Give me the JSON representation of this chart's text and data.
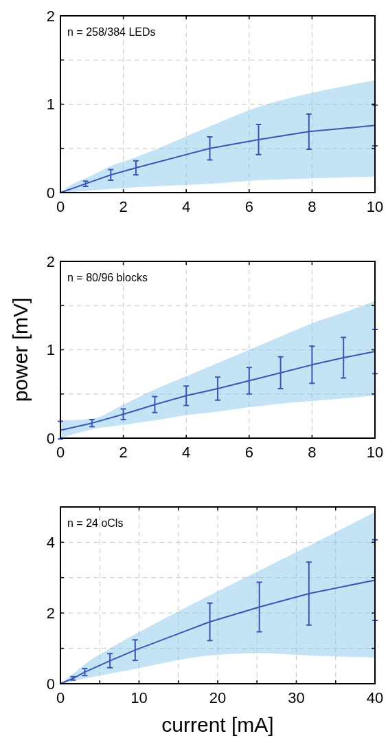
{
  "chart_data": [
    {
      "type": "line",
      "annotations": [
        "n = 258/384 LEDs"
      ],
      "xlim": [
        0,
        10
      ],
      "ylim": [
        0,
        2
      ],
      "xticks": [
        0,
        2,
        4,
        6,
        8,
        10
      ],
      "yticks": [
        0,
        {
          "value": 0.5,
          "label": null
        },
        1,
        {
          "value": 1.5,
          "label": null
        },
        2
      ],
      "grid": true,
      "marker": "none",
      "series": [
        {
          "color": "#3a55b4",
          "x": [
            0,
            0.4,
            0.8,
            1.6,
            2.4,
            4.75,
            6.3,
            7.9,
            10
          ],
          "values": [
            0,
            0.05,
            0.1,
            0.2,
            0.28,
            0.5,
            0.6,
            0.69,
            0.76
          ],
          "errors": [
            null,
            null,
            0.03,
            0.06,
            0.08,
            0.13,
            0.17,
            0.2,
            0.23
          ],
          "lower": [
            0,
            0.01,
            0.02,
            0.04,
            0.06,
            0.1,
            0.14,
            0.16,
            0.18
          ],
          "upper": [
            0,
            0.1,
            0.16,
            0.3,
            0.4,
            0.75,
            0.97,
            1.12,
            1.27
          ]
        }
      ]
    },
    {
      "type": "line",
      "ylabel": "power [mV]",
      "annotations": [
        "n = 80/96 blocks"
      ],
      "xlim": [
        0,
        10
      ],
      "ylim": [
        0,
        2
      ],
      "xticks": [
        0,
        2,
        4,
        6,
        8,
        10
      ],
      "yticks": [
        0,
        {
          "value": 0.5,
          "label": null
        },
        1,
        {
          "value": 1.5,
          "label": null
        },
        2
      ],
      "grid": true,
      "marker": "none",
      "series": [
        {
          "color": "#3a55b4",
          "x": [
            0,
            1,
            2,
            3,
            4,
            5,
            6,
            7,
            8,
            9,
            10
          ],
          "values": [
            0.09,
            0.17,
            0.27,
            0.38,
            0.48,
            0.56,
            0.65,
            0.74,
            0.83,
            0.91,
            0.98
          ],
          "errors": [
            0.1,
            0.04,
            0.06,
            0.09,
            0.11,
            0.13,
            0.15,
            0.18,
            0.21,
            0.23,
            0.25
          ],
          "lower": [
            0,
            0.1,
            0.15,
            0.2,
            0.26,
            0.3,
            0.35,
            0.39,
            0.42,
            0.45,
            0.48
          ],
          "upper": [
            0.2,
            0.22,
            0.38,
            0.55,
            0.7,
            0.85,
            1,
            1.15,
            1.3,
            1.42,
            1.55
          ]
        }
      ]
    },
    {
      "type": "line",
      "xlabel": "current [mA]",
      "annotations": [
        "n = 24 oCls"
      ],
      "xlim": [
        0,
        40
      ],
      "ylim": [
        0,
        5
      ],
      "xticks": [
        0,
        {
          "value": 5,
          "label": null
        },
        10,
        {
          "value": 15,
          "label": null
        },
        20,
        {
          "value": 25,
          "label": null
        },
        30,
        {
          "value": 35,
          "label": null
        },
        40
      ],
      "yticks": [
        0,
        {
          "value": 1,
          "label": null
        },
        2,
        {
          "value": 3,
          "label": null
        },
        4
      ],
      "grid": true,
      "marker": "none",
      "series": [
        {
          "color": "#3a55b4",
          "x": [
            0,
            1.6,
            3.1,
            6.3,
            9.5,
            19,
            25.3,
            31.6,
            40
          ],
          "values": [
            0,
            0.15,
            0.33,
            0.65,
            0.95,
            1.75,
            2.17,
            2.55,
            2.93
          ],
          "errors": [
            null,
            0.05,
            0.1,
            0.2,
            0.29,
            0.53,
            0.7,
            0.89,
            1.14
          ],
          "lower": [
            0,
            0.08,
            0.15,
            0.28,
            0.42,
            0.8,
            0.86,
            0.8,
            0.74
          ],
          "upper": [
            0,
            0.28,
            0.55,
            1,
            1.4,
            2.5,
            3.2,
            3.9,
            4.86
          ]
        }
      ]
    }
  ]
}
